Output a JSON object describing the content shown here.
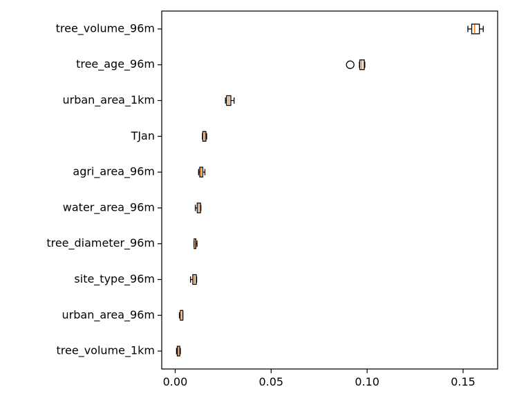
{
  "chart_data": {
    "type": "boxplot",
    "orientation": "horizontal",
    "title": "",
    "xlabel": "",
    "ylabel": "",
    "xlim": [
      -0.007,
      0.168
    ],
    "xticks": [
      0.0,
      0.05,
      0.1,
      0.15
    ],
    "xtick_labels": [
      "0.00",
      "0.05",
      "0.10",
      "0.15"
    ],
    "grid": false,
    "colors": {
      "box_edge": "#000000",
      "median": "#ff7f0e",
      "whisker": "#000000",
      "flier": "#000000",
      "background": "#ffffff"
    },
    "categories": [
      "tree_volume_96m",
      "tree_age_96m",
      "urban_area_1km",
      "TJan",
      "agri_area_96m",
      "water_area_96m",
      "tree_diameter_96m",
      "site_type_96m",
      "urban_area_96m",
      "tree_volume_1km"
    ],
    "boxes": [
      {
        "label": "tree_volume_96m",
        "whislo": 0.1525,
        "q1": 0.1545,
        "med": 0.156,
        "q3": 0.1585,
        "whishi": 0.1605,
        "fliers": []
      },
      {
        "label": "tree_age_96m",
        "whislo": 0.096,
        "q1": 0.0962,
        "med": 0.0972,
        "q3": 0.0985,
        "whishi": 0.0988,
        "fliers": [
          0.0912
        ]
      },
      {
        "label": "urban_area_1km",
        "whislo": 0.0262,
        "q1": 0.0268,
        "med": 0.028,
        "q3": 0.029,
        "whishi": 0.0307,
        "fliers": []
      },
      {
        "label": "TJan",
        "whislo": 0.0142,
        "q1": 0.0144,
        "med": 0.0152,
        "q3": 0.016,
        "whishi": 0.0164,
        "fliers": []
      },
      {
        "label": "agri_area_96m",
        "whislo": 0.0122,
        "q1": 0.0128,
        "med": 0.0135,
        "q3": 0.0144,
        "whishi": 0.0155,
        "fliers": []
      },
      {
        "label": "water_area_96m",
        "whislo": 0.0105,
        "q1": 0.0115,
        "med": 0.0123,
        "q3": 0.0132,
        "whishi": 0.0134,
        "fliers": []
      },
      {
        "label": "tree_diameter_96m",
        "whislo": 0.0098,
        "q1": 0.0099,
        "med": 0.0102,
        "q3": 0.0108,
        "whishi": 0.0114,
        "fliers": []
      },
      {
        "label": "site_type_96m",
        "whislo": 0.008,
        "q1": 0.0092,
        "med": 0.01,
        "q3": 0.011,
        "whishi": 0.0112,
        "fliers": []
      },
      {
        "label": "urban_area_96m",
        "whislo": 0.0022,
        "q1": 0.0027,
        "med": 0.003,
        "q3": 0.004,
        "whishi": 0.004,
        "fliers": []
      },
      {
        "label": "tree_volume_1km",
        "whislo": 0.0007,
        "q1": 0.0011,
        "med": 0.0016,
        "q3": 0.0024,
        "whishi": 0.0027,
        "fliers": []
      }
    ]
  }
}
